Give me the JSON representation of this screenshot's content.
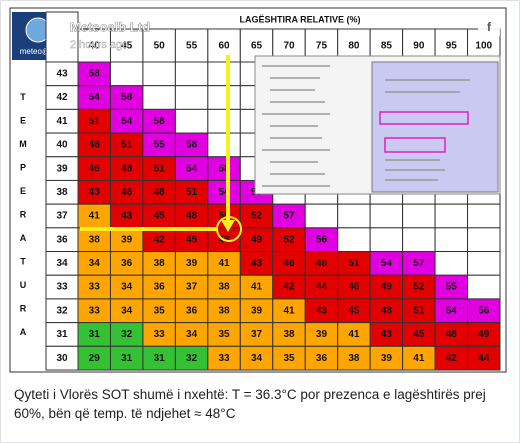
{
  "post": {
    "author": "Meteoalb Ltd",
    "time": "2 hours ago",
    "logo_text": "meteo@lb",
    "caption": "Qyteti i Vlorës SOT shumë i nxehtë: T = 36.3°C por prezenca e lagështirës prej 60%, bën që temp. të ndjehet ≈ 48°C",
    "share_icon": "f"
  },
  "table": {
    "header": "LAGËSHTIRA RELATIVE (%)",
    "side_label": "TEMPERATURA",
    "humidity": [
      40,
      45,
      50,
      55,
      60,
      65,
      70,
      75,
      80,
      85,
      90,
      95,
      100
    ],
    "rows": [
      {
        "temperature": 43,
        "values": [
          58,
          null,
          null,
          null,
          null,
          null,
          null,
          null,
          null,
          null,
          null,
          null,
          null
        ]
      },
      {
        "temperature": 42,
        "values": [
          54,
          58,
          null,
          null,
          null,
          null,
          null,
          null,
          null,
          null,
          null,
          null,
          null
        ]
      },
      {
        "temperature": 41,
        "values": [
          51,
          54,
          58,
          null,
          null,
          null,
          null,
          null,
          null,
          null,
          null,
          null,
          null
        ]
      },
      {
        "temperature": 40,
        "values": [
          48,
          51,
          55,
          58,
          null,
          null,
          null,
          null,
          null,
          null,
          null,
          null,
          null
        ]
      },
      {
        "temperature": 39,
        "values": [
          46,
          48,
          51,
          54,
          58,
          null,
          null,
          null,
          null,
          null,
          null,
          null,
          null
        ]
      },
      {
        "temperature": 38,
        "values": [
          43,
          46,
          48,
          51,
          54,
          58,
          null,
          null,
          null,
          null,
          null,
          null,
          null
        ]
      },
      {
        "temperature": 37,
        "values": [
          41,
          43,
          45,
          48,
          50,
          52,
          57,
          null,
          null,
          null,
          null,
          null,
          null
        ]
      },
      {
        "temperature": 36,
        "values": [
          38,
          39,
          42,
          45,
          48,
          49,
          52,
          56,
          null,
          null,
          null,
          null,
          null
        ]
      },
      {
        "temperature": 34,
        "values": [
          34,
          36,
          38,
          39,
          41,
          43,
          46,
          48,
          51,
          54,
          57,
          null,
          null
        ]
      },
      {
        "temperature": 33,
        "values": [
          33,
          34,
          36,
          37,
          38,
          41,
          42,
          44,
          46,
          49,
          52,
          55,
          null
        ]
      },
      {
        "temperature": 32,
        "values": [
          33,
          34,
          35,
          36,
          38,
          39,
          41,
          43,
          45,
          48,
          51,
          54,
          56
        ]
      },
      {
        "temperature": 31,
        "values": [
          31,
          32,
          33,
          34,
          35,
          37,
          38,
          39,
          41,
          43,
          45,
          48,
          49
        ]
      },
      {
        "temperature": 30,
        "values": [
          29,
          31,
          31,
          32,
          33,
          34,
          35,
          36,
          38,
          39,
          41,
          42,
          44
        ]
      }
    ]
  }
}
